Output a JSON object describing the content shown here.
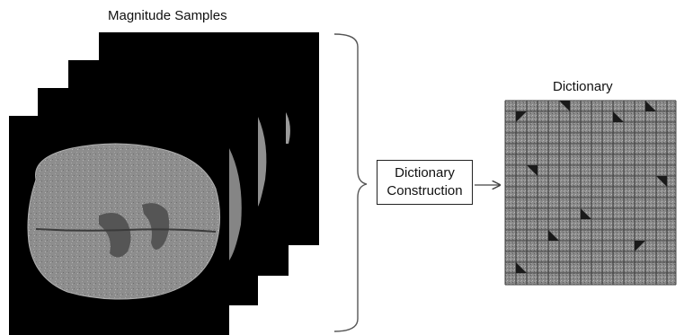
{
  "diagram": {
    "samples_label": "Magnitude Samples",
    "process_label_line1": "Dictionary",
    "process_label_line2": "Construction",
    "dictionary_label": "Dictionary"
  }
}
